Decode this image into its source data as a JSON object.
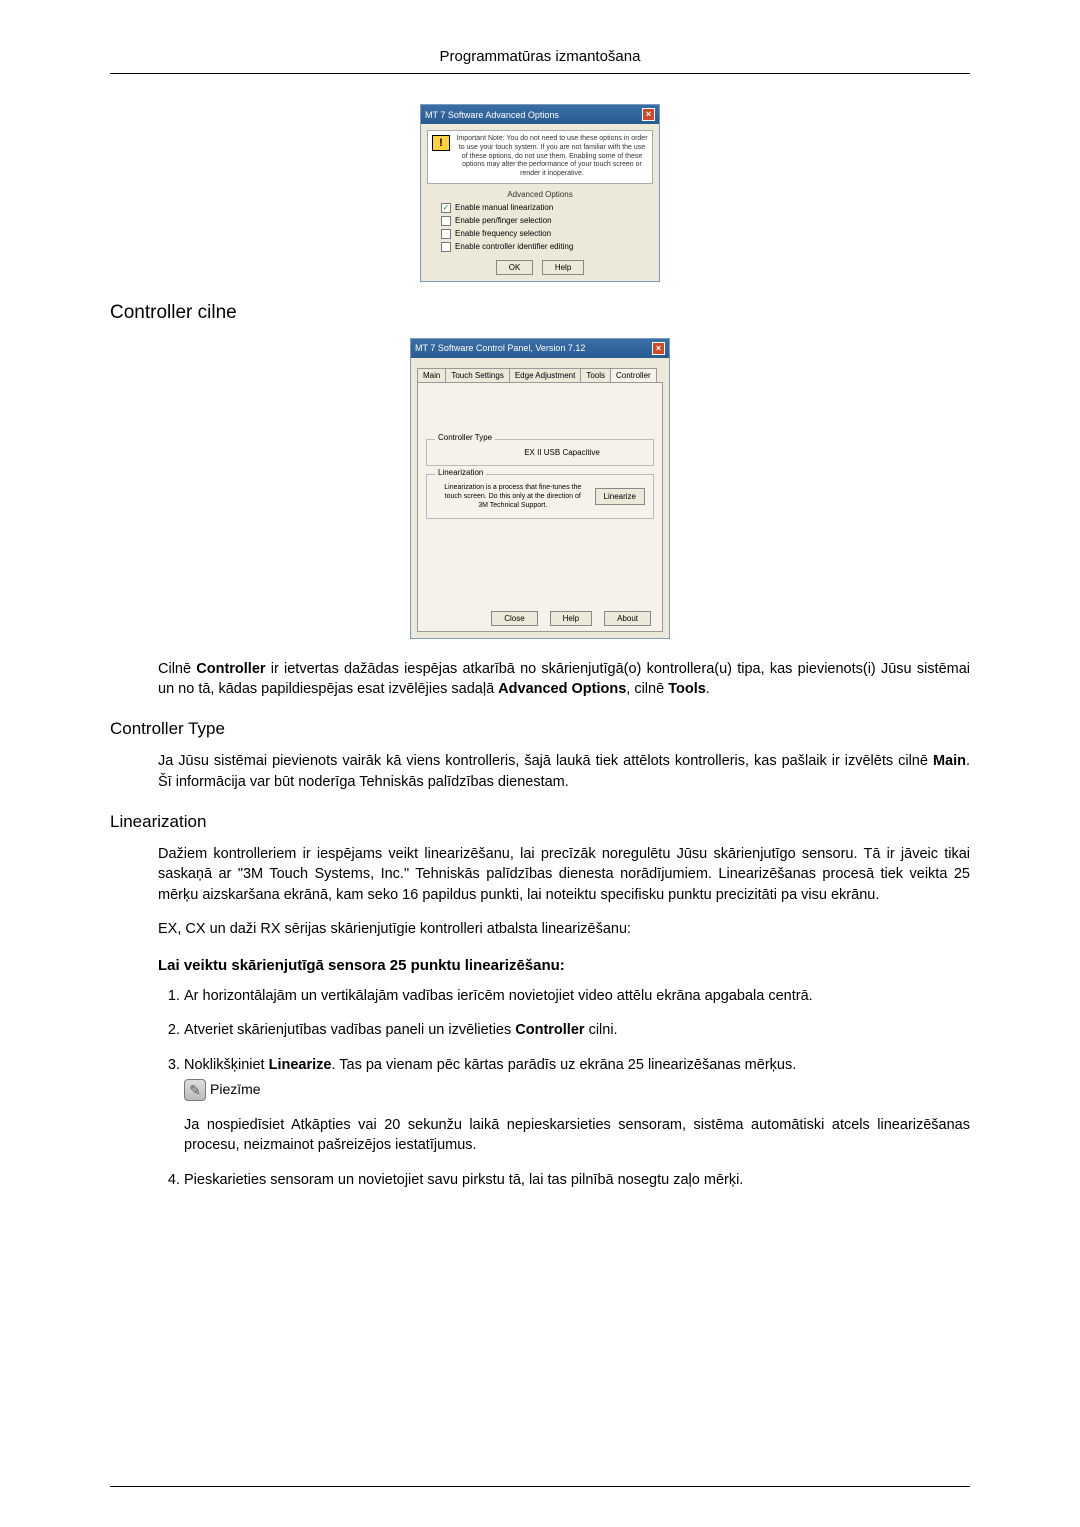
{
  "header": {
    "title": "Programmatūras izmantošana"
  },
  "dialog1": {
    "title": "MT 7 Software Advanced Options",
    "warning": "Important Note: You do not need to use these options in order to use your touch system. If you are not familiar with the use of these options, do not use them. Enabling some of these options may alter the performance of your touch screen or render it inoperative.",
    "advanced_label": "Advanced Options",
    "opts": [
      {
        "label": "Enable manual linearization",
        "checked": true
      },
      {
        "label": "Enable pen/finger selection",
        "checked": false
      },
      {
        "label": "Enable frequency selection",
        "checked": false
      },
      {
        "label": "Enable controller identifier editing",
        "checked": false
      }
    ],
    "ok": "OK",
    "help": "Help"
  },
  "section_controller_cilne": "Controller cilne",
  "dialog2": {
    "title": "MT 7 Software Control Panel, Version 7.12",
    "tabs": [
      "Main",
      "Touch Settings",
      "Edge Adjustment",
      "Tools",
      "Controller"
    ],
    "controller_type_label": "Controller Type",
    "controller_type_value": "EX II USB Capacitive",
    "linearization_label": "Linearization",
    "linearization_text": "Linearization is a process that fine-tunes the touch screen. Do this only at the direction of 3M Technical Support.",
    "linearize_btn": "Linearize",
    "close": "Close",
    "help": "Help",
    "about": "About"
  },
  "para_controller_intro": {
    "p1a": "Cilnē ",
    "p1b": "Controller",
    "p1c": " ir ietvertas dažādas iespējas atkarībā no skārienjutīgā(o) kontrollera(u) tipa, kas pievienots(i) Jūsu sistēmai un no tā, kādas papildiespējas esat izvēlējies sadaļā ",
    "p1d": "Advanced Options",
    "p1e": ", cilnē ",
    "p1f": "Tools",
    "p1g": "."
  },
  "section_controller_type": "Controller Type",
  "para_controller_type": {
    "a": "Ja Jūsu sistēmai pievienots vairāk kā viens kontrolleris, šajā laukā tiek attēlots kontrolleris, kas pašlaik ir izvēlēts cilnē ",
    "b": "Main",
    "c": ". Šī informācija var būt noderīga Tehniskās palīdzības dienestam."
  },
  "section_linearization": "Linearization",
  "para_lin1": "Dažiem kontrolleriem ir iespējams veikt linearizēšanu, lai precīzāk noregulētu Jūsu skārienjutīgo sensoru. Tā ir jāveic tikai saskaņā ar \"3M Touch Systems, Inc.\" Tehniskās palīdzības dienesta norādījumiem. Linearizēšanas procesā tiek veikta 25 mērķu aizskaršana ekrānā, kam seko 16 papildus punkti, lai noteiktu specifisku punktu precizitāti pa visu ekrānu.",
  "para_lin2": "EX, CX un daži RX sērijas skārienjutīgie kontrolleri atbalsta linearizēšanu:",
  "heading_steps": "Lai veiktu skārienjutīgā sensora 25 punktu linearizēšanu:",
  "steps": {
    "s1": "Ar horizontālajām un vertikālajām vadības ierīcēm novietojiet video attēlu ekrāna apgabala centrā.",
    "s2a": "Atveriet skārienjutības vadības paneli un izvēlieties ",
    "s2b": "Controller",
    "s2c": " cilni.",
    "s3a": "Noklikšķiniet ",
    "s3b": "Linearize",
    "s3c": ". Tas pa vienam pēc kārtas parādīs uz ekrāna 25 linearizēšanas mērķus.",
    "note_label": "Piezīme",
    "note_text": "Ja nospiedīsiet Atkāpties vai 20 sekunžu laikā nepieskarsieties sensoram, sistēma automātiski atcels linearizēšanas procesu, neizmainot pašreizējos iestatījumus.",
    "s4": "Pieskarieties sensoram un novietojiet savu pirkstu tā, lai tas pilnībā nosegtu zaļo mērķi."
  }
}
